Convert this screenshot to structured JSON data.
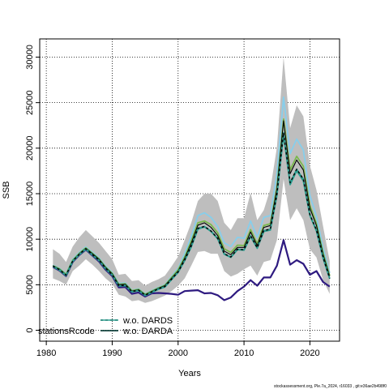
{
  "chart_data": {
    "type": "line",
    "xlabel": "Years",
    "ylabel": "SSB",
    "xlim": [
      1979,
      2024.5
    ],
    "ylim": [
      -1200,
      32000
    ],
    "xticks": [
      1980,
      1990,
      2000,
      2010,
      2020
    ],
    "yticks": [
      0,
      5000,
      10000,
      15000,
      20000,
      25000,
      30000
    ],
    "grid": true,
    "legend_placement": "bottom-left",
    "legend": {
      "title": "stationsRcode",
      "entries": [
        {
          "label": "w.o. DARDS",
          "style": "dashed",
          "color": "#000000"
        },
        {
          "label": "w.o. DARDA",
          "style": "solid",
          "color": "#000000"
        }
      ]
    },
    "footer": "stockassessment.org, Ple.7a_2024, r16033 , git:e36ae2b498f0",
    "x": [
      1981,
      1982,
      1983,
      1984,
      1985,
      1986,
      1987,
      1988,
      1989,
      1990,
      1991,
      1992,
      1993,
      1994,
      1995,
      1996,
      1997,
      1998,
      1999,
      2000,
      2001,
      2002,
      2003,
      2004,
      2005,
      2006,
      2007,
      2008,
      2009,
      2010,
      2011,
      2012,
      2013,
      2014,
      2015,
      2016,
      2017,
      2018,
      2019,
      2020,
      2021,
      2022,
      2023
    ],
    "band": {
      "color": "#bebebe",
      "upper": [
        8900,
        8400,
        7500,
        9200,
        10200,
        11000,
        10300,
        9600,
        8700,
        7800,
        6100,
        6200,
        5400,
        5500,
        4900,
        5300,
        5600,
        6000,
        7000,
        8100,
        9900,
        11800,
        14200,
        15000,
        15000,
        14200,
        11800,
        11000,
        12300,
        12300,
        15100,
        12100,
        13200,
        15500,
        20100,
        30000,
        22200,
        24700,
        23500,
        18100,
        15400,
        11400,
        7600
      ],
      "lower": [
        5700,
        5400,
        5000,
        6500,
        7100,
        7800,
        7200,
        6500,
        5700,
        5100,
        3900,
        3700,
        3200,
        3300,
        3000,
        3200,
        3500,
        3800,
        4300,
        4900,
        5700,
        7100,
        8600,
        8700,
        8400,
        8400,
        6500,
        5900,
        6200,
        6700,
        7100,
        6000,
        7500,
        7700,
        9900,
        16600,
        12100,
        13400,
        12100,
        8900,
        8000,
        5500,
        4000
      ]
    },
    "series": [
      {
        "name": "w.o. DARDS",
        "color": "#000000",
        "style": "dashed",
        "values": [
          7050,
          6650,
          6050,
          7600,
          8350,
          8950,
          8300,
          7700,
          6800,
          6100,
          4900,
          4950,
          4250,
          4400,
          3850,
          4200,
          4550,
          4800,
          5600,
          6400,
          7700,
          9250,
          11200,
          11400,
          10900,
          10100,
          8400,
          8050,
          8900,
          8850,
          10400,
          9050,
          10950,
          11100,
          14900,
          21700,
          16200,
          17700,
          16600,
          12700,
          11000,
          8000,
          5700
        ]
      },
      {
        "name": "w.o. DARDA",
        "color": "#000000",
        "style": "solid",
        "values": [
          7100,
          6700,
          6100,
          7650,
          8400,
          9000,
          8400,
          7800,
          6900,
          6200,
          5000,
          5050,
          4300,
          4450,
          3900,
          4250,
          4600,
          4900,
          5700,
          6500,
          7900,
          9550,
          11550,
          11800,
          11300,
          10400,
          8700,
          8300,
          9100,
          9100,
          10800,
          9300,
          11300,
          11500,
          15500,
          23000,
          17200,
          18700,
          17600,
          13400,
          11500,
          8300,
          5900
        ]
      },
      {
        "color": "#2a9d8f",
        "style": "solid",
        "values": [
          7000,
          6600,
          6000,
          7550,
          8300,
          8900,
          8250,
          7650,
          6750,
          6050,
          4850,
          4900,
          4200,
          4350,
          3800,
          4150,
          4500,
          4750,
          5550,
          6350,
          7650,
          9150,
          11100,
          11350,
          10850,
          10050,
          8350,
          8000,
          8850,
          8800,
          10300,
          9000,
          10850,
          11000,
          14800,
          21500,
          16000,
          17500,
          16400,
          12600,
          10900,
          7900,
          5650
        ]
      },
      {
        "color": "#7ab84c",
        "style": "solid",
        "values": [
          7100,
          6750,
          6150,
          7700,
          8450,
          9050,
          8450,
          7850,
          6950,
          6250,
          5050,
          5100,
          4350,
          4500,
          3950,
          4300,
          4650,
          4950,
          5800,
          6650,
          8050,
          9800,
          11800,
          12000,
          11600,
          10700,
          8950,
          8550,
          9350,
          9300,
          11050,
          9500,
          11500,
          11700,
          15700,
          23200,
          17600,
          19100,
          18000,
          13700,
          11700,
          8500,
          6000
        ]
      },
      {
        "color": "#87ceeb",
        "style": "solid",
        "values": [
          7150,
          6800,
          6200,
          7800,
          8550,
          9150,
          8550,
          7950,
          7050,
          6350,
          5150,
          5200,
          4400,
          4550,
          4000,
          4350,
          4700,
          5000,
          5900,
          6800,
          8400,
          10300,
          12600,
          12900,
          12400,
          11400,
          9600,
          9200,
          10200,
          10100,
          12000,
          10200,
          12400,
          12600,
          17200,
          25600,
          19400,
          21000,
          19800,
          14800,
          12500,
          9000,
          6300
        ]
      },
      {
        "color": "#2e1a80",
        "style": "solid",
        "values": [
          6950,
          6550,
          5950,
          7500,
          8250,
          8850,
          8200,
          7550,
          6650,
          5950,
          4700,
          4750,
          4000,
          4150,
          3700,
          4050,
          4100,
          4050,
          4000,
          3900,
          4300,
          4350,
          4400,
          4050,
          4100,
          3850,
          3300,
          3600,
          4300,
          4800,
          5500,
          4900,
          5800,
          5800,
          7100,
          9900,
          7200,
          7700,
          7300,
          6100,
          6500,
          5300,
          4800
        ]
      }
    ]
  }
}
